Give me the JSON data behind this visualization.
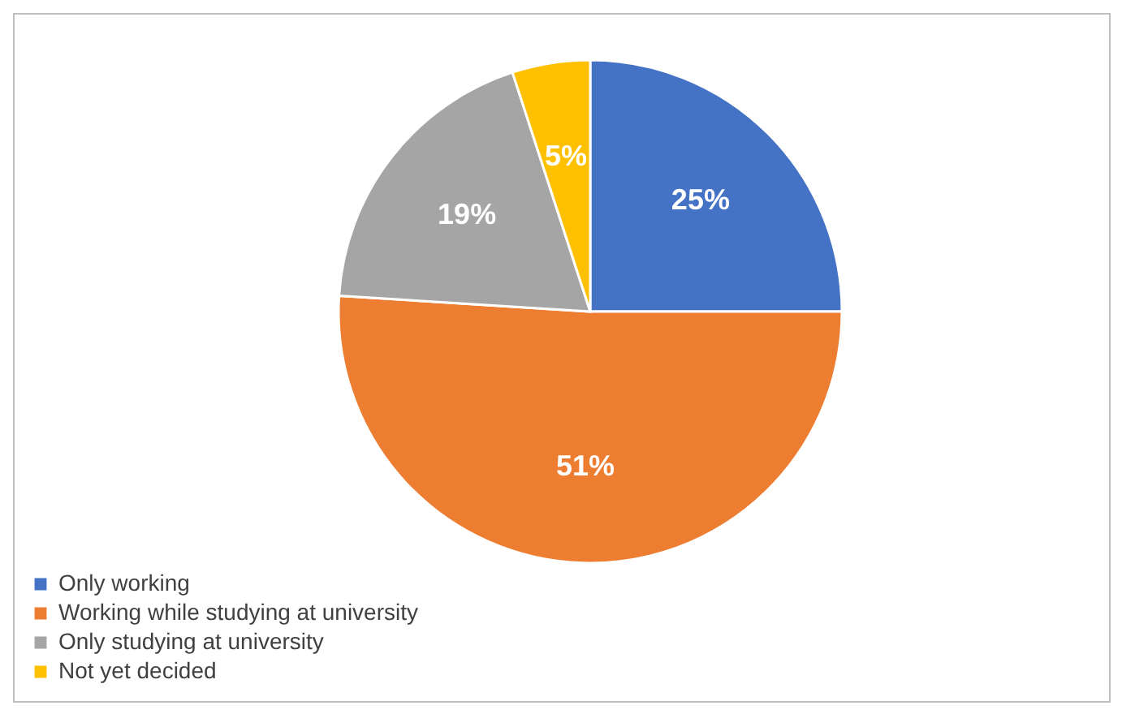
{
  "chart_data": {
    "type": "pie",
    "categories": [
      "Only working",
      "Working while studying at university",
      "Only studying at university",
      "Not yet decided"
    ],
    "values": [
      25,
      51,
      19,
      5
    ],
    "colors": [
      "#4472c4",
      "#ed7d31",
      "#a5a5a5",
      "#ffc000"
    ],
    "value_labels": [
      "25%",
      "51%",
      "19%",
      "5%"
    ],
    "legend": "bottom left"
  }
}
